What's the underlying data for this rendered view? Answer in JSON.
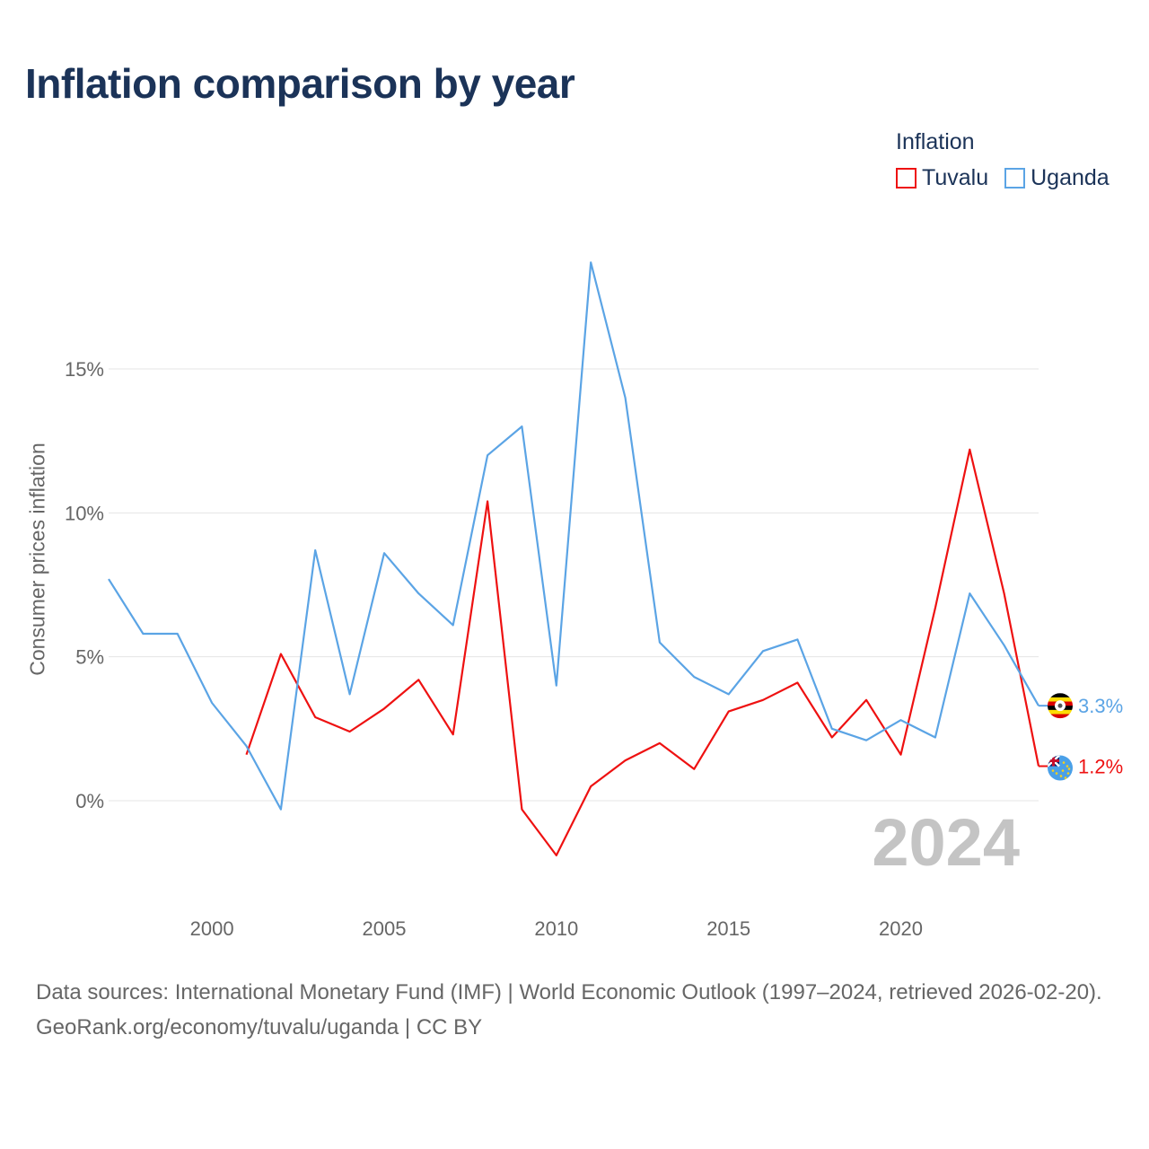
{
  "title": "Inflation comparison by year",
  "legend": {
    "title": "Inflation",
    "items": [
      {
        "label": "Tuvalu",
        "color": "#ee1111"
      },
      {
        "label": "Uganda",
        "color": "#5ba4e5"
      }
    ]
  },
  "chart_data": {
    "type": "line",
    "title": "Inflation comparison by year",
    "xlabel": "",
    "ylabel": "Consumer prices inflation",
    "xlim": [
      1997,
      2024
    ],
    "ylim": [
      -3.5,
      19
    ],
    "yticks": [
      0,
      5,
      10,
      15
    ],
    "ytick_labels": [
      "0%",
      "5%",
      "10%",
      "15%"
    ],
    "xticks": [
      2000,
      2005,
      2010,
      2015,
      2020
    ],
    "xtick_labels": [
      "2000",
      "2005",
      "2010",
      "2015",
      "2020"
    ],
    "grid": true,
    "current_year": "2024",
    "series": [
      {
        "name": "Tuvalu",
        "color": "#ee1111",
        "end_label": "1.2%",
        "x": [
          2001,
          2002,
          2003,
          2004,
          2005,
          2006,
          2007,
          2008,
          2009,
          2010,
          2011,
          2012,
          2013,
          2014,
          2015,
          2016,
          2017,
          2018,
          2019,
          2020,
          2021,
          2022,
          2023,
          2024
        ],
        "values": [
          1.6,
          5.1,
          2.9,
          2.4,
          3.2,
          4.2,
          2.3,
          10.4,
          -0.3,
          -1.9,
          0.5,
          1.4,
          2.0,
          1.1,
          3.1,
          3.5,
          4.1,
          2.2,
          3.5,
          1.6,
          6.7,
          12.2,
          7.2,
          1.2
        ]
      },
      {
        "name": "Uganda",
        "color": "#5ba4e5",
        "end_label": "3.3%",
        "x": [
          1997,
          1998,
          1999,
          2000,
          2001,
          2002,
          2003,
          2004,
          2005,
          2006,
          2007,
          2008,
          2009,
          2010,
          2011,
          2012,
          2013,
          2014,
          2015,
          2016,
          2017,
          2018,
          2019,
          2020,
          2021,
          2022,
          2023,
          2024
        ],
        "values": [
          7.7,
          5.8,
          5.8,
          3.4,
          1.9,
          -0.3,
          8.7,
          3.7,
          8.6,
          7.2,
          6.1,
          12.0,
          13.0,
          4.0,
          18.7,
          14.0,
          5.5,
          4.3,
          3.7,
          5.2,
          5.6,
          2.5,
          2.1,
          2.8,
          2.2,
          7.2,
          5.4,
          3.3
        ]
      }
    ]
  },
  "footer": {
    "source": "Data sources: International Monetary Fund (IMF) | World Economic Outlook (1997–2024, retrieved 2026-02-20).",
    "credit": "GeoRank.org/economy/tuvalu/uganda | CC BY"
  },
  "icons": {
    "uganda": "uganda-flag-icon",
    "tuvalu": "tuvalu-flag-icon"
  }
}
